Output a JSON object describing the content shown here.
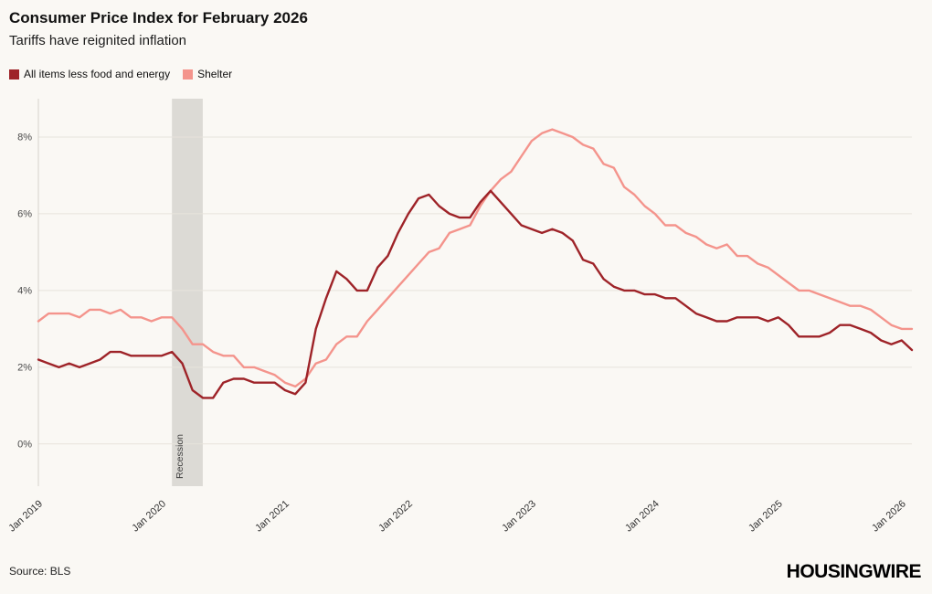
{
  "header": {
    "title": "Consumer Price Index for February 2026",
    "subtitle": "Tariffs have reignited inflation"
  },
  "legend": [
    {
      "label": "All items less food and energy",
      "color": "#9e2328"
    },
    {
      "label": "Shelter",
      "color": "#f4948c"
    }
  ],
  "footer": {
    "source": "Source: BLS",
    "brand": "HOUSINGWIRE"
  },
  "chart_data": {
    "type": "line",
    "title": "Consumer Price Index for February 2026",
    "subtitle": "Tariffs have reignited inflation",
    "x_start": "Jan 2019",
    "x_end": "Feb 2026",
    "x_frequency": "monthly",
    "x_tick_labels": [
      "Jan 2019",
      "Jan 2020",
      "Jan 2021",
      "Jan 2022",
      "Jan 2023",
      "Jan 2024",
      "Jan 2025",
      "Jan 2026"
    ],
    "x_tick_month_indices": [
      0,
      12,
      24,
      36,
      48,
      60,
      72,
      84
    ],
    "y_ticks": [
      0,
      2,
      4,
      6,
      8
    ],
    "y_tick_suffix": "%",
    "ylim": [
      -1.1,
      9.0
    ],
    "grid": "horizontal",
    "legend_position": "top-left",
    "recession_band": {
      "label": "Recession",
      "start_month_index": 13,
      "end_month_index": 16
    },
    "series": [
      {
        "name": "Shelter",
        "color": "#f4948c",
        "values": [
          3.2,
          3.4,
          3.4,
          3.4,
          3.3,
          3.5,
          3.5,
          3.4,
          3.5,
          3.3,
          3.3,
          3.2,
          3.3,
          3.3,
          3.0,
          2.6,
          2.6,
          2.4,
          2.3,
          2.3,
          2.0,
          2.0,
          1.9,
          1.8,
          1.6,
          1.5,
          1.7,
          2.1,
          2.2,
          2.6,
          2.8,
          2.8,
          3.2,
          3.5,
          3.8,
          4.1,
          4.4,
          4.7,
          5.0,
          5.1,
          5.5,
          5.6,
          5.7,
          6.2,
          6.6,
          6.9,
          7.1,
          7.5,
          7.9,
          8.1,
          8.2,
          8.1,
          8.0,
          7.8,
          7.7,
          7.3,
          7.2,
          6.7,
          6.5,
          6.2,
          6.0,
          5.7,
          5.7,
          5.5,
          5.4,
          5.2,
          5.1,
          5.2,
          4.9,
          4.9,
          4.7,
          4.6,
          4.4,
          4.2,
          4.0,
          4.0,
          3.9,
          3.8,
          3.7,
          3.6,
          3.6,
          3.5,
          3.3,
          3.1,
          3.0,
          3.0
        ]
      },
      {
        "name": "All items less food and energy",
        "color": "#9e2328",
        "values": [
          2.2,
          2.1,
          2.0,
          2.1,
          2.0,
          2.1,
          2.2,
          2.4,
          2.4,
          2.3,
          2.3,
          2.3,
          2.3,
          2.4,
          2.1,
          1.4,
          1.2,
          1.2,
          1.6,
          1.7,
          1.7,
          1.6,
          1.6,
          1.6,
          1.4,
          1.3,
          1.6,
          3.0,
          3.8,
          4.5,
          4.3,
          4.0,
          4.0,
          4.6,
          4.9,
          5.5,
          6.0,
          6.4,
          6.5,
          6.2,
          6.0,
          5.9,
          5.9,
          6.3,
          6.6,
          6.3,
          6.0,
          5.7,
          5.6,
          5.5,
          5.6,
          5.5,
          5.3,
          4.8,
          4.7,
          4.3,
          4.1,
          4.0,
          4.0,
          3.9,
          3.9,
          3.8,
          3.8,
          3.6,
          3.4,
          3.3,
          3.2,
          3.2,
          3.3,
          3.3,
          3.3,
          3.2,
          3.3,
          3.1,
          2.8,
          2.8,
          2.8,
          2.9,
          3.1,
          3.1,
          3.0,
          2.9,
          2.7,
          2.6,
          2.7,
          2.45
        ]
      }
    ]
  }
}
